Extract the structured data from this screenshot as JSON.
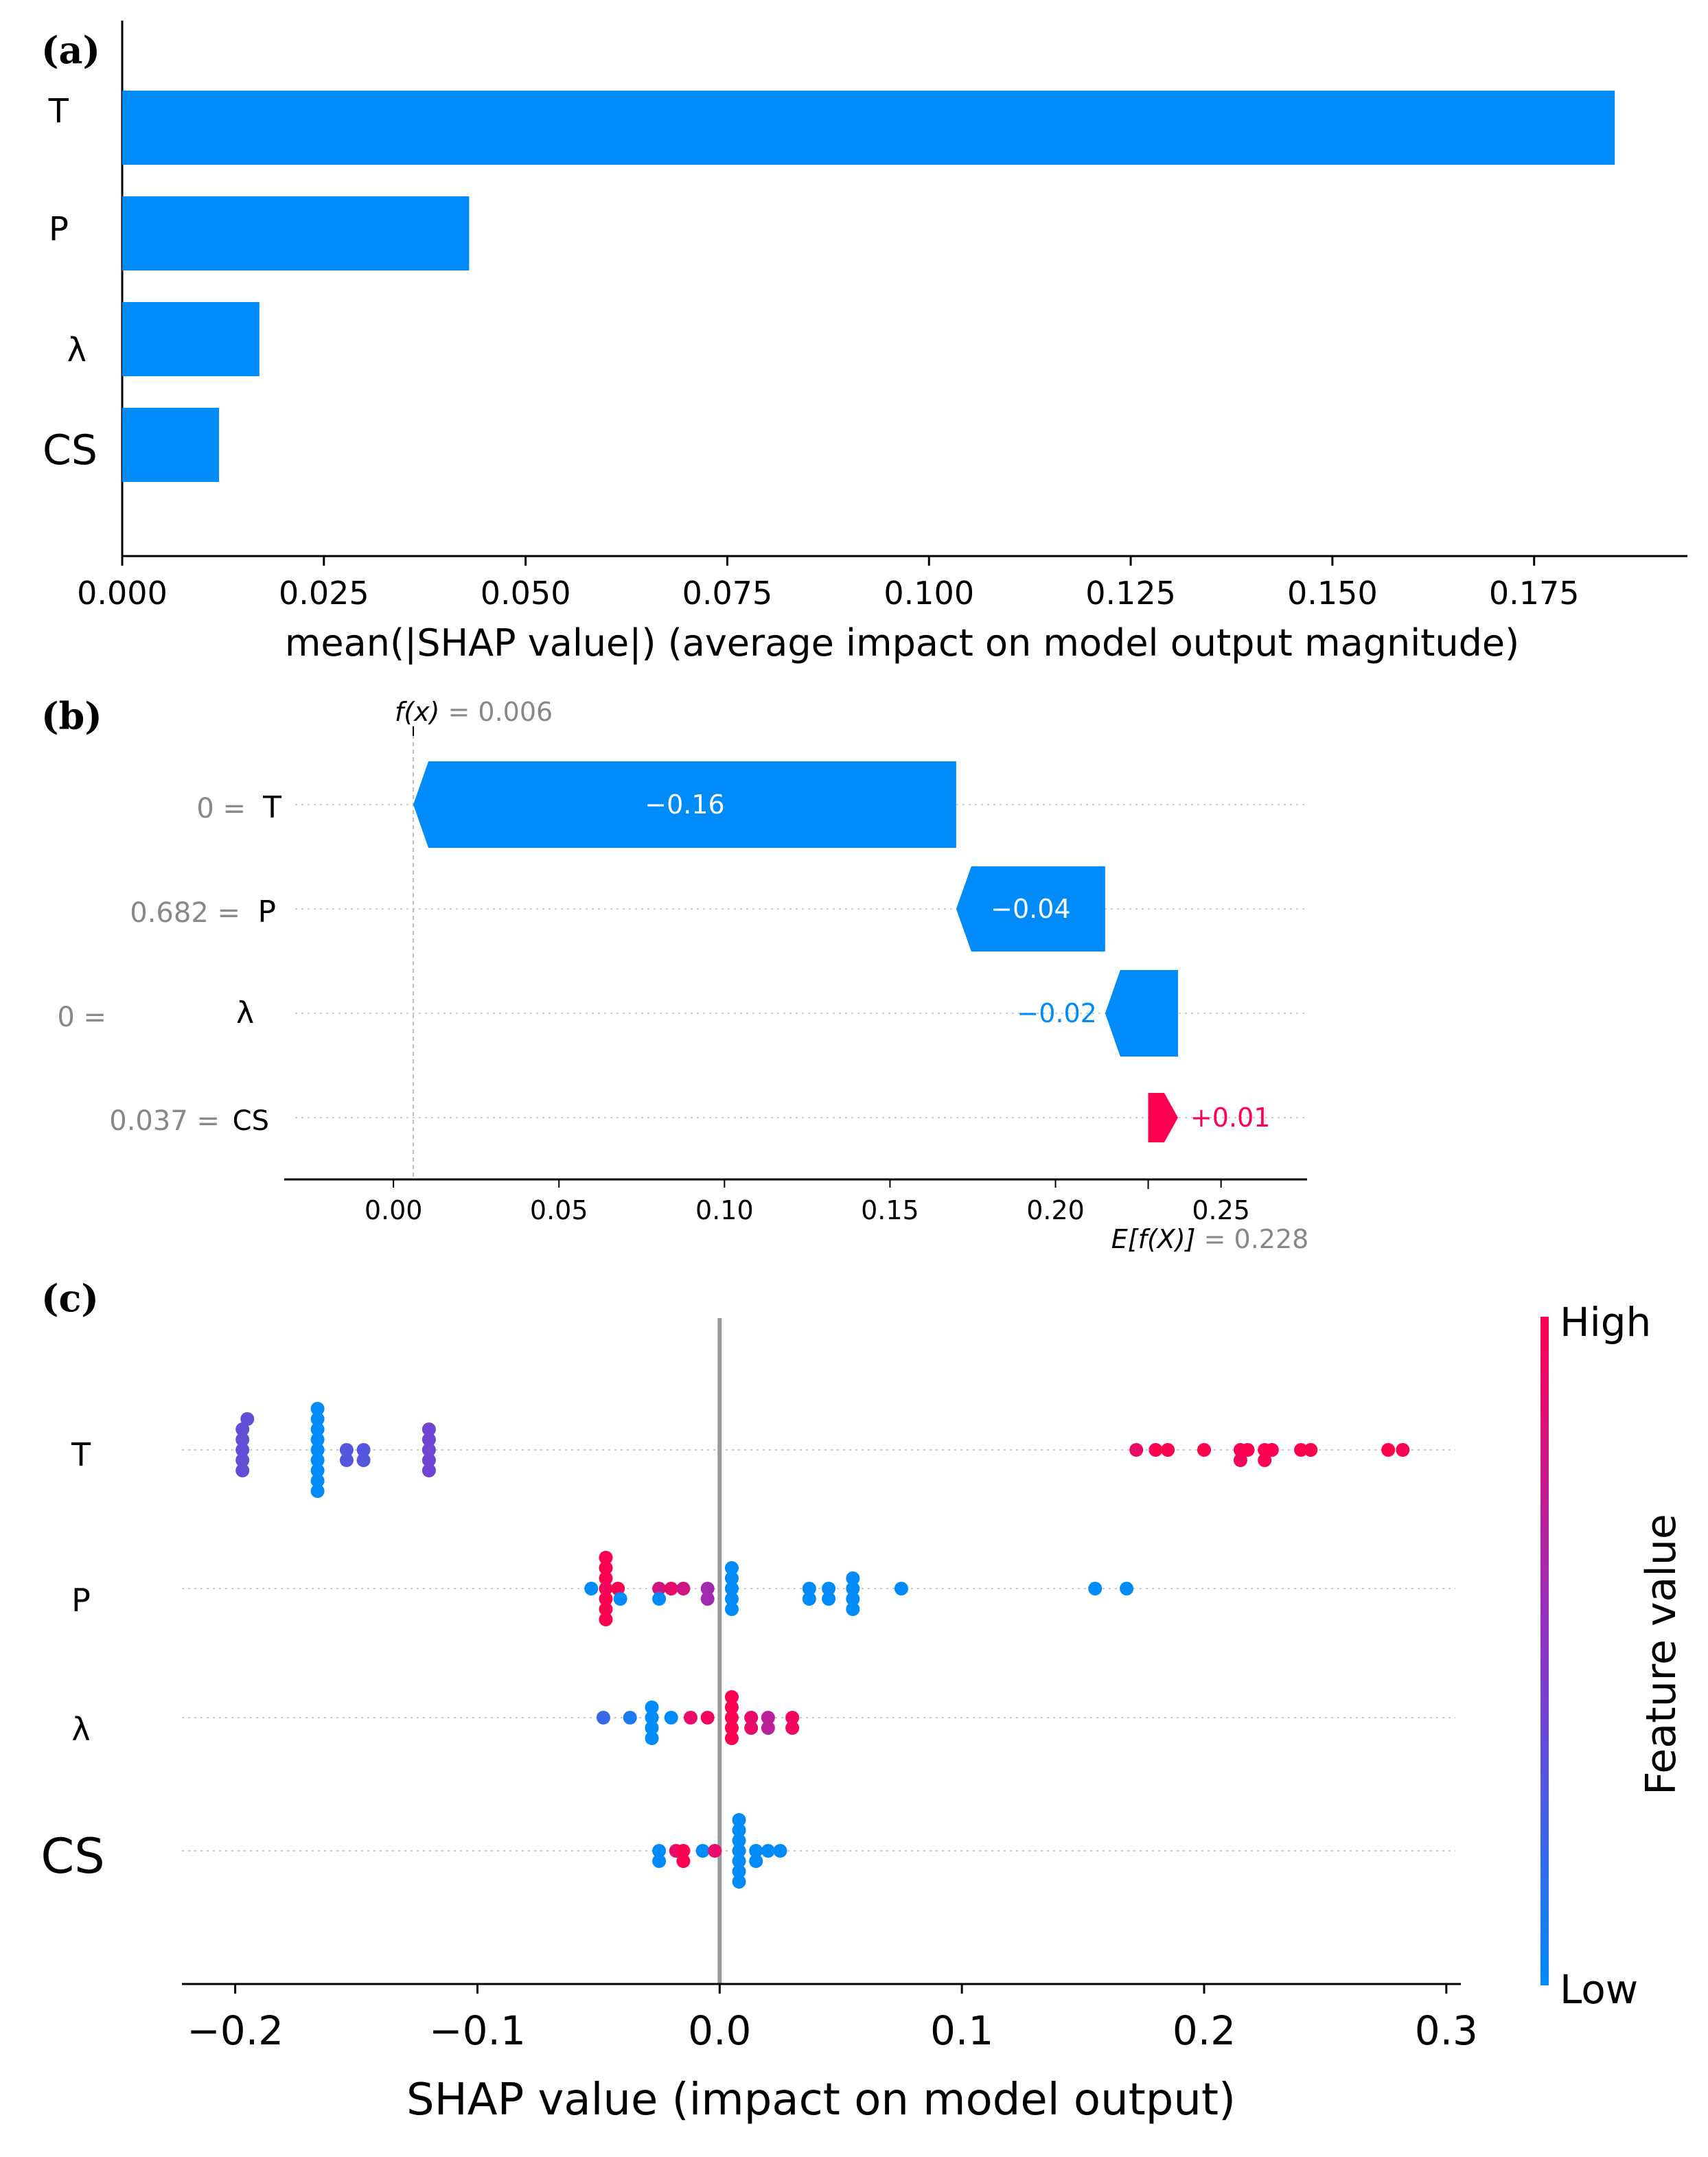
{
  "colors": {
    "bar": "#008bfb",
    "negative": "#008bfb",
    "positive": "#ff0051",
    "low": "#008bfb",
    "high": "#ff0051",
    "mid": "#8a35c9",
    "axis": "#000000",
    "muted": "#888888",
    "grid": "#cccccc",
    "zero_line": "#999999"
  },
  "chart_data": [
    {
      "type": "bar",
      "panel_label": "(a)",
      "orientation": "horizontal",
      "categories": [
        "T",
        "P",
        "λ",
        "CS"
      ],
      "values": [
        0.185,
        0.043,
        0.017,
        0.012
      ],
      "xlim": [
        0,
        0.194
      ],
      "xticks": [
        0.0,
        0.025,
        0.05,
        0.075,
        0.1,
        0.125,
        0.15,
        0.175
      ],
      "xtick_labels": [
        "0.000",
        "0.025",
        "0.050",
        "0.075",
        "0.100",
        "0.125",
        "0.150",
        "0.175"
      ],
      "xlabel": "mean(|SHAP value|) (average impact on model output magnitude)"
    },
    {
      "type": "bar",
      "subtype": "waterfall",
      "panel_label": "(b)",
      "features": [
        {
          "name": "T",
          "value_label": "0 =",
          "start": 0.17,
          "end": 0.006,
          "contribution": "−0.16",
          "label_inside": true
        },
        {
          "name": "P",
          "value_label": "0.682 =",
          "start": 0.215,
          "end": 0.17,
          "contribution": "−0.04",
          "label_inside": true
        },
        {
          "name": "λ",
          "value_label": "0 =",
          "start": 0.237,
          "end": 0.215,
          "contribution": "−0.02",
          "label_inside": false
        },
        {
          "name": "CS",
          "value_label": "0.037 =",
          "start": 0.228,
          "end": 0.237,
          "contribution": "+0.01",
          "label_inside": false
        }
      ],
      "fx_label": "f(x)",
      "fx_text": "= 0.006",
      "fx_value": 0.006,
      "efx_label": "E[f(X)]",
      "efx_text": "= 0.228",
      "efx_value": 0.228,
      "xlim": [
        -0.033,
        0.276
      ],
      "xticks": [
        0.0,
        0.05,
        0.1,
        0.15,
        0.2,
        0.25
      ],
      "xtick_labels": [
        "0.00",
        "0.05",
        "0.10",
        "0.15",
        "0.20",
        "0.25"
      ]
    },
    {
      "type": "scatter",
      "subtype": "beeswarm",
      "panel_label": "(c)",
      "categories": [
        "T",
        "P",
        "λ",
        "CS"
      ],
      "xlim": [
        -0.222,
        0.306
      ],
      "xticks": [
        -0.2,
        -0.1,
        0.0,
        0.1,
        0.2,
        0.3
      ],
      "xtick_labels": [
        "−0.2",
        "−0.1",
        "0.0",
        "0.1",
        "0.2",
        "0.3"
      ],
      "xlabel": "SHAP value (impact on model output)",
      "colorbar": {
        "title": "Feature value",
        "high": "High",
        "low": "Low"
      },
      "series": [
        {
          "name": "T",
          "points": [
            [
              -0.197,
              0,
              0.35
            ],
            [
              -0.197,
              1,
              0.35
            ],
            [
              -0.197,
              -1,
              0.35
            ],
            [
              -0.197,
              2,
              0.35
            ],
            [
              -0.197,
              -2,
              0.35
            ],
            [
              -0.195,
              -3,
              0.35
            ],
            [
              -0.166,
              0,
              0.0
            ],
            [
              -0.166,
              1,
              0.0
            ],
            [
              -0.166,
              -1,
              0.0
            ],
            [
              -0.166,
              2,
              0.0
            ],
            [
              -0.166,
              -2,
              0.0
            ],
            [
              -0.166,
              3,
              0.0
            ],
            [
              -0.166,
              -3,
              0.0
            ],
            [
              -0.166,
              4,
              0.0
            ],
            [
              -0.166,
              -4,
              0.0
            ],
            [
              -0.154,
              0,
              0.3
            ],
            [
              -0.154,
              1,
              0.3
            ],
            [
              -0.147,
              0,
              0.3
            ],
            [
              -0.147,
              1,
              0.3
            ],
            [
              -0.12,
              0,
              0.4
            ],
            [
              -0.12,
              1,
              0.4
            ],
            [
              -0.12,
              -1,
              0.4
            ],
            [
              -0.12,
              2,
              0.4
            ],
            [
              -0.12,
              -2,
              0.4
            ],
            [
              0.172,
              0,
              0.9
            ],
            [
              0.18,
              0,
              1.0
            ],
            [
              0.185,
              0,
              1.0
            ],
            [
              0.2,
              0,
              1.0
            ],
            [
              0.215,
              0,
              1.0
            ],
            [
              0.215,
              1,
              0.95
            ],
            [
              0.218,
              0,
              1.0
            ],
            [
              0.225,
              0,
              1.0
            ],
            [
              0.225,
              1,
              1.0
            ],
            [
              0.228,
              0,
              1.0
            ],
            [
              0.24,
              0,
              1.0
            ],
            [
              0.244,
              0,
              1.0
            ],
            [
              0.276,
              0,
              1.0
            ],
            [
              0.282,
              0,
              1.0
            ]
          ]
        },
        {
          "name": "P",
          "points": [
            [
              -0.053,
              0,
              0.0
            ],
            [
              -0.047,
              0,
              0.95
            ],
            [
              -0.047,
              1,
              1.0
            ],
            [
              -0.047,
              -1,
              1.0
            ],
            [
              -0.047,
              2,
              1.0
            ],
            [
              -0.047,
              -2,
              1.0
            ],
            [
              -0.047,
              3,
              1.0
            ],
            [
              -0.047,
              -3,
              1.0
            ],
            [
              -0.042,
              0,
              1.0
            ],
            [
              -0.041,
              1,
              0.0
            ],
            [
              -0.025,
              0,
              0.8
            ],
            [
              -0.025,
              1,
              0.0
            ],
            [
              -0.02,
              0,
              0.9
            ],
            [
              -0.015,
              0,
              0.8
            ],
            [
              -0.005,
              0,
              0.6
            ],
            [
              -0.005,
              1,
              0.6
            ],
            [
              0.005,
              0,
              0.0
            ],
            [
              0.005,
              1,
              0.0
            ],
            [
              0.005,
              -1,
              0.0
            ],
            [
              0.005,
              2,
              0.0
            ],
            [
              0.005,
              -2,
              0.0
            ],
            [
              0.037,
              0,
              0.0
            ],
            [
              0.037,
              1,
              0.0
            ],
            [
              0.045,
              0,
              0.0
            ],
            [
              0.045,
              1,
              0.0
            ],
            [
              0.055,
              0,
              0.0
            ],
            [
              0.055,
              1,
              0.0
            ],
            [
              0.055,
              -1,
              0.0
            ],
            [
              0.055,
              2,
              0.0
            ],
            [
              0.075,
              0,
              0.0
            ],
            [
              0.155,
              0,
              0.0
            ],
            [
              0.168,
              0,
              0.0
            ]
          ]
        },
        {
          "name": "λ",
          "points": [
            [
              -0.048,
              0,
              0.2
            ],
            [
              -0.037,
              0,
              0.1
            ],
            [
              -0.028,
              0,
              0.0
            ],
            [
              -0.028,
              1,
              0.0
            ],
            [
              -0.028,
              -1,
              0.0
            ],
            [
              -0.028,
              2,
              0.0
            ],
            [
              -0.02,
              0,
              0.0
            ],
            [
              -0.012,
              0,
              0.9
            ],
            [
              -0.005,
              0,
              0.95
            ],
            [
              0.005,
              0,
              1.0
            ],
            [
              0.005,
              1,
              1.0
            ],
            [
              0.005,
              -1,
              1.0
            ],
            [
              0.005,
              2,
              1.0
            ],
            [
              0.005,
              -2,
              1.0
            ],
            [
              0.013,
              0,
              0.9
            ],
            [
              0.013,
              1,
              0.9
            ],
            [
              0.02,
              0,
              0.7
            ],
            [
              0.02,
              1,
              0.7
            ],
            [
              0.03,
              0,
              0.95
            ],
            [
              0.03,
              1,
              0.95
            ]
          ]
        },
        {
          "name": "CS",
          "points": [
            [
              -0.025,
              0,
              0.0
            ],
            [
              -0.025,
              1,
              0.0
            ],
            [
              -0.018,
              0,
              0.9
            ],
            [
              -0.015,
              0,
              1.0
            ],
            [
              -0.015,
              1,
              1.0
            ],
            [
              -0.007,
              0,
              0.0
            ],
            [
              -0.002,
              0,
              0.9
            ],
            [
              0.008,
              0,
              0.0
            ],
            [
              0.008,
              1,
              0.0
            ],
            [
              0.008,
              -1,
              0.0
            ],
            [
              0.008,
              2,
              0.0
            ],
            [
              0.008,
              -2,
              0.0
            ],
            [
              0.008,
              3,
              0.0
            ],
            [
              0.008,
              -3,
              0.0
            ],
            [
              0.015,
              0,
              0.0
            ],
            [
              0.015,
              1,
              0.0
            ],
            [
              0.02,
              0,
              0.0
            ],
            [
              0.025,
              0,
              0.0
            ]
          ]
        }
      ]
    }
  ]
}
